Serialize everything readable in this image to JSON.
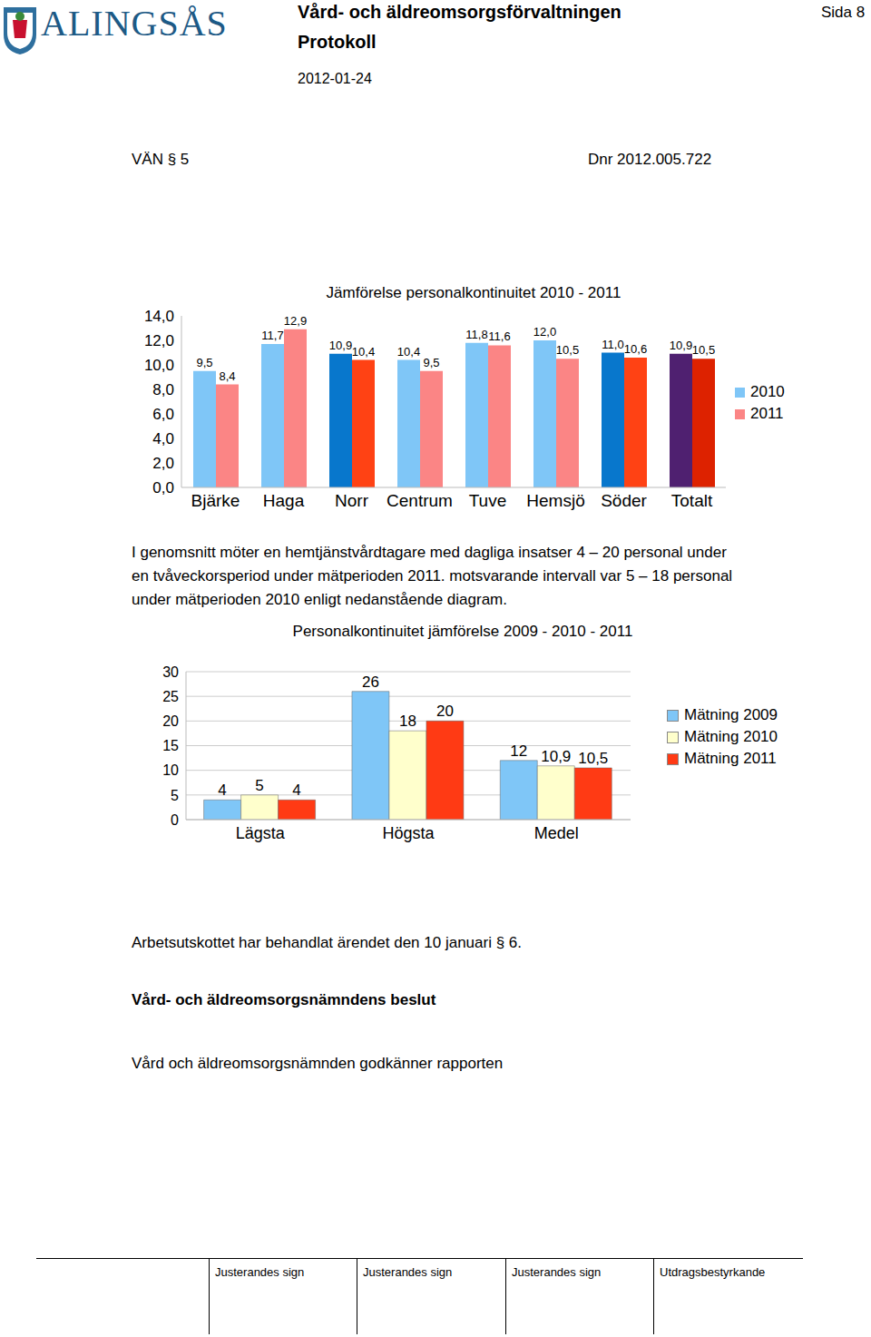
{
  "header": {
    "logo": "ALINGSÅS",
    "department": "Vård- och äldreomsorgsförvaltningen",
    "doc_type": "Protokoll",
    "date": "2012-01-24",
    "page": "Sida 8"
  },
  "case": {
    "section": "VÄN § 5",
    "dnr": "Dnr 2012.005.722"
  },
  "chart_data": [
    {
      "type": "bar",
      "title": "Jämförelse personalkontinuitet 2010 - 2011",
      "categories": [
        "Bjärke",
        "Haga",
        "Norr",
        "Centrum",
        "Tuve",
        "Hemsjö",
        "Söder",
        "Totalt"
      ],
      "series": [
        {
          "name": "2010",
          "color": "#7fc6f7",
          "colors": [
            "#7fc6f7",
            "#7fc6f7",
            "#0877cc",
            "#7fc6f7",
            "#7fc6f7",
            "#7fc6f7",
            "#0877cc",
            "#4f2070"
          ],
          "values": [
            9.5,
            11.7,
            10.9,
            10.4,
            11.8,
            12.0,
            11.0,
            10.9
          ],
          "value_labels": [
            "9,5",
            "11,7",
            "10,9",
            "10,4",
            "11,8",
            "12,0",
            "11,0",
            "10,9"
          ]
        },
        {
          "name": "2011",
          "color": "#fb8585",
          "colors": [
            "#fb8585",
            "#fb8585",
            "#ff4214",
            "#fb8585",
            "#fb8585",
            "#fb8585",
            "#ff4214",
            "#dd2200"
          ],
          "values": [
            8.4,
            12.9,
            10.4,
            9.5,
            11.6,
            10.5,
            10.6,
            10.5
          ],
          "value_labels": [
            "8,4",
            "12,9",
            "10,4",
            "9,5",
            "11,6",
            "10,5",
            "10,6",
            "10,5"
          ]
        }
      ],
      "ylim": [
        0,
        14
      ],
      "yticks": [
        {
          "value": 0,
          "label": "0,0"
        },
        {
          "value": 2,
          "label": "2,0"
        },
        {
          "value": 4,
          "label": "4,0"
        },
        {
          "value": 6,
          "label": "6,0"
        },
        {
          "value": 8,
          "label": "8,0"
        },
        {
          "value": 10,
          "label": "10,0"
        },
        {
          "value": 12,
          "label": "12,0"
        },
        {
          "value": 14,
          "label": "14,0"
        }
      ],
      "grid": false,
      "legend": "right",
      "data_labels": true
    },
    {
      "type": "bar",
      "title": "Personalkontinuitet jämförelse 2009 - 2010 - 2011",
      "categories": [
        "Lägsta",
        "Högsta",
        "Medel"
      ],
      "series": [
        {
          "name": "Mätning 2009",
          "color": "#7fc6f7",
          "values": [
            4,
            26,
            12
          ],
          "value_labels": [
            "4",
            "26",
            "12"
          ]
        },
        {
          "name": "Mätning 2010",
          "color": "#ffffcc",
          "values": [
            5,
            18,
            10.9
          ],
          "value_labels": [
            "5",
            "18",
            "10,9"
          ]
        },
        {
          "name": "Mätning 2011",
          "color": "#ff3a14",
          "values": [
            4,
            20,
            10.5
          ],
          "value_labels": [
            "4",
            "20",
            "10,5"
          ]
        }
      ],
      "ylim": [
        0,
        30
      ],
      "yticks": [
        0,
        5,
        10,
        15,
        20,
        25,
        30
      ],
      "grid": true,
      "legend": "right",
      "data_labels": true
    }
  ],
  "paragraph": [
    "I genomsnitt möter en hemtjänstvårdtagare med dagliga insatser 4 – 20 personal under",
    "en tvåveckorsperiod under mätperioden 2011. motsvarande intervall var 5 – 18 personal",
    "under mätperioden 2010 enligt nedanstående diagram."
  ],
  "body": {
    "note": "Arbetsutskottet har behandlat ärendet den 10 januari § 6.",
    "heading": "Vård- och äldreomsorgsnämndens beslut",
    "decision": "Vård och äldreomsorgsnämnden godkänner rapporten"
  },
  "footer": [
    "Justerandes sign",
    "Justerandes sign",
    "Justerandes sign",
    "Utdragsbestyrkande"
  ]
}
